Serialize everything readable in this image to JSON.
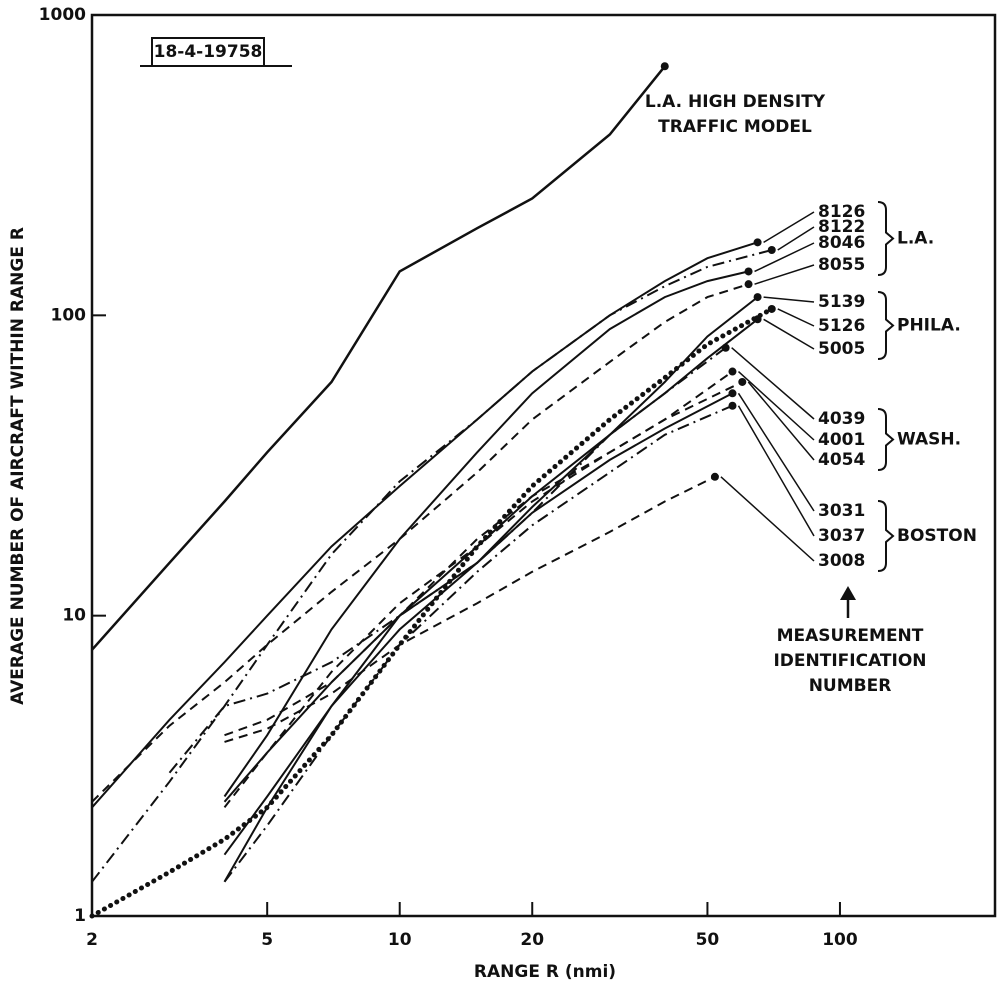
{
  "chart_data": {
    "type": "line",
    "log_x": true,
    "log_y": true,
    "color": "#111111",
    "x_label": "RANGE R (nmi)",
    "y_label": "AVERAGE NUMBER OF AIRCRAFT WITHIN RANGE R",
    "xlim": [
      2,
      225
    ],
    "ylim": [
      1,
      1000
    ],
    "xticks": [
      2,
      5,
      10,
      20,
      50,
      100
    ],
    "yticks": [
      1,
      10,
      100,
      1000
    ],
    "figure_id": "18-4-19758",
    "model_label": [
      "L.A. HIGH DENSITY",
      "TRAFFIC MODEL"
    ],
    "group_labels": [
      "L.A.",
      "PHILA.",
      "WASH.",
      "BOSTON"
    ],
    "legend_title": [
      "MEASUREMENT",
      "IDENTIFICATION",
      "NUMBER"
    ],
    "model": {
      "style": "solid",
      "x": [
        2,
        3,
        4,
        5,
        7,
        10,
        15,
        20,
        30,
        40
      ],
      "values": [
        7.7,
        15,
        24,
        35,
        60,
        140,
        195,
        245,
        400,
        675
      ]
    },
    "series": [
      {
        "name": "8126",
        "style": "solid",
        "x": [
          2,
          3,
          4,
          5,
          7,
          10,
          15,
          20,
          30,
          40,
          50,
          65
        ],
        "values": [
          2.3,
          4.5,
          7,
          10,
          17,
          27,
          45,
          65,
          100,
          130,
          155,
          175
        ]
      },
      {
        "name": "8122",
        "style": "dashdot",
        "x": [
          2,
          3,
          4,
          5,
          7,
          10,
          15,
          20,
          30,
          40,
          50,
          70
        ],
        "values": [
          1.3,
          2.8,
          5,
          8,
          16,
          28,
          45,
          65,
          100,
          125,
          145,
          165
        ]
      },
      {
        "name": "8046",
        "style": "solid",
        "x": [
          4,
          5,
          7,
          10,
          15,
          20,
          30,
          40,
          50,
          62
        ],
        "values": [
          2.5,
          4,
          9,
          18,
          35,
          55,
          90,
          115,
          130,
          140
        ]
      },
      {
        "name": "8055",
        "style": "dashed",
        "x": [
          2,
          3,
          4,
          5,
          7,
          10,
          15,
          20,
          30,
          40,
          50,
          62
        ],
        "values": [
          2.4,
          4.3,
          6,
          8,
          12,
          18,
          30,
          45,
          70,
          95,
          115,
          127
        ]
      },
      {
        "name": "5139",
        "style": "solid",
        "x": [
          4,
          5,
          7,
          10,
          15,
          20,
          30,
          40,
          50,
          65
        ],
        "values": [
          1.6,
          2.5,
          5,
          9,
          15,
          23,
          40,
          60,
          85,
          115
        ]
      },
      {
        "name": "5126",
        "style": "dotted",
        "x": [
          2,
          3,
          4,
          5,
          7,
          10,
          15,
          20,
          30,
          40,
          50,
          70
        ],
        "values": [
          1,
          1.4,
          1.8,
          2.3,
          4,
          8,
          17,
          27,
          45,
          62,
          80,
          105
        ]
      },
      {
        "name": "5005",
        "style": "solid",
        "x": [
          4,
          5,
          7,
          10,
          15,
          20,
          30,
          40,
          50,
          65
        ],
        "values": [
          1.3,
          2.3,
          5,
          10,
          17,
          25,
          40,
          55,
          72,
          97
        ]
      },
      {
        "name": "4039",
        "style": "dashdot",
        "x": [
          3,
          4,
          5,
          7,
          10,
          15,
          20,
          30,
          40,
          55
        ],
        "values": [
          3,
          5,
          5.5,
          7,
          10,
          15,
          22,
          40,
          55,
          78
        ]
      },
      {
        "name": "4001",
        "style": "dashed",
        "x": [
          4,
          5,
          7,
          10,
          15,
          20,
          30,
          40,
          57
        ],
        "values": [
          4,
          4.5,
          6,
          10,
          18,
          25,
          35,
          45,
          65
        ]
      },
      {
        "name": "4054",
        "style": "dashed",
        "x": [
          4,
          5,
          7,
          10,
          15,
          20,
          30,
          40,
          60
        ],
        "values": [
          2.3,
          3.5,
          6.5,
          11,
          17,
          24,
          35,
          45,
          60
        ]
      },
      {
        "name": "3031",
        "style": "solid",
        "x": [
          4,
          5,
          7,
          10,
          15,
          20,
          30,
          40,
          57
        ],
        "values": [
          2.4,
          3.5,
          6,
          10,
          15,
          22,
          33,
          42,
          55
        ]
      },
      {
        "name": "3037",
        "style": "dashdot",
        "x": [
          4,
          5,
          7,
          10,
          15,
          20,
          30,
          40,
          57
        ],
        "values": [
          1.3,
          2,
          4,
          8,
          14,
          20,
          30,
          40,
          50
        ]
      },
      {
        "name": "3008",
        "style": "dashed",
        "x": [
          4,
          5,
          7,
          10,
          15,
          20,
          30,
          40,
          52
        ],
        "values": [
          3.8,
          4.2,
          5.5,
          8,
          11,
          14,
          19,
          24,
          29
        ]
      }
    ]
  }
}
